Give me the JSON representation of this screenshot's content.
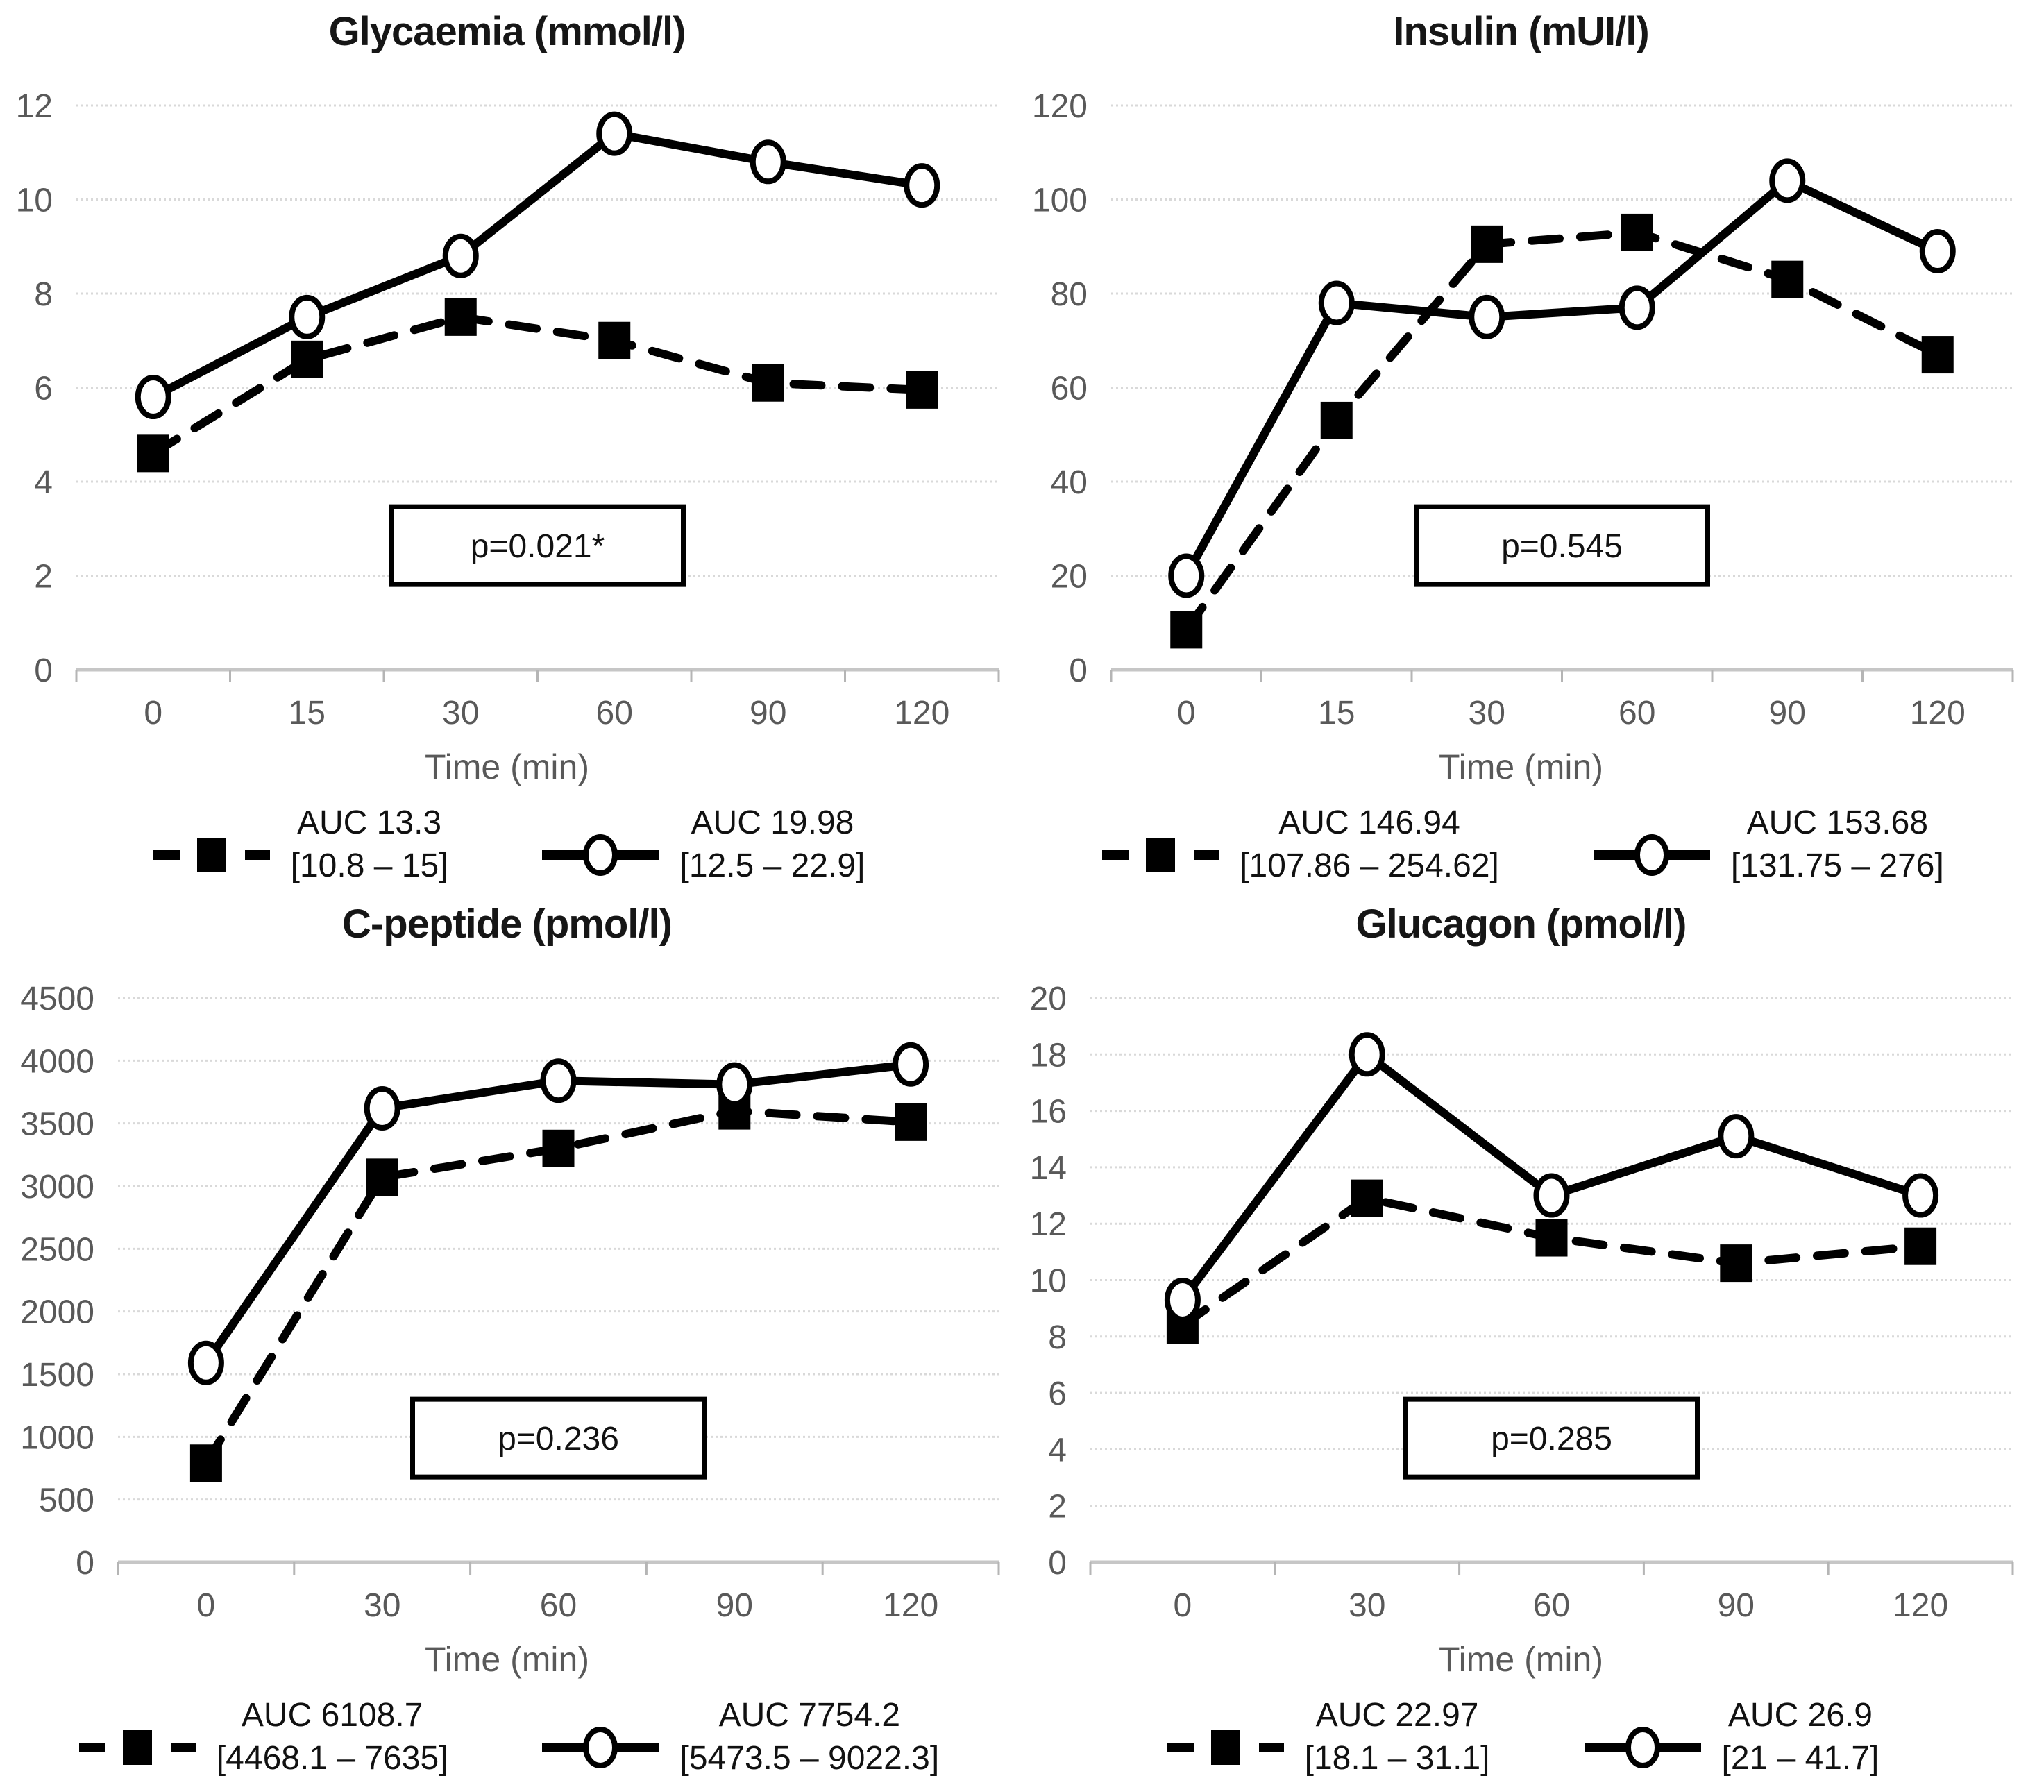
{
  "page": {
    "background": "#ffffff"
  },
  "colors": {
    "series": "#000000",
    "axis_label": "#595959",
    "gridline": "#d9d9d9",
    "axis_line": "#c6c6c6",
    "tick_mark": "#b5b5b5",
    "p_box_border": "#000000",
    "p_box_fill": "#ffffff",
    "title_text": "#161616",
    "legend_text": "#111111"
  },
  "chart_data": [
    {
      "type": "line",
      "title": "Glycaemia (mmol/l)",
      "xlabel": "Time (min)",
      "x_tick_labels": [
        "0",
        "15",
        "30",
        "60",
        "90",
        "120"
      ],
      "ylim": [
        0,
        12
      ],
      "yticks": [
        0,
        2,
        4,
        6,
        8,
        10,
        12
      ],
      "grid": "horizontal",
      "legend_position": "bottom",
      "p_value_label": "p=0.021*",
      "series": [
        {
          "name": "dashed-filled-squares",
          "marker": "filled-square",
          "line_style": "dashed",
          "color": "#000000",
          "x": [
            0,
            15,
            30,
            60,
            90,
            120
          ],
          "values": [
            4.6,
            6.6,
            7.5,
            7.0,
            6.1,
            5.95
          ],
          "legend": {
            "auc_label": "AUC 13.3",
            "range_label": "[10.8 – 15]"
          }
        },
        {
          "name": "solid-open-circles",
          "marker": "open-circle",
          "line_style": "solid",
          "color": "#000000",
          "x": [
            0,
            15,
            30,
            60,
            90,
            120
          ],
          "values": [
            5.8,
            7.5,
            8.8,
            11.4,
            10.8,
            10.3
          ],
          "legend": {
            "auc_label": "AUC 19.98",
            "range_label": "[12.5 – 22.9]"
          }
        }
      ]
    },
    {
      "type": "line",
      "title": "Insulin (mUI/l)",
      "xlabel": "Time (min)",
      "x_tick_labels": [
        "0",
        "15",
        "30",
        "60",
        "90",
        "120"
      ],
      "ylim": [
        0,
        120
      ],
      "yticks": [
        0,
        20,
        40,
        60,
        80,
        100,
        120
      ],
      "grid": "horizontal",
      "legend_position": "bottom",
      "p_value_label": "p=0.545",
      "series": [
        {
          "name": "dashed-filled-squares",
          "marker": "filled-square",
          "line_style": "dashed",
          "color": "#000000",
          "x": [
            0,
            15,
            30,
            60,
            90,
            120
          ],
          "values": [
            8.5,
            53,
            90.5,
            93,
            83,
            67
          ],
          "legend": {
            "auc_label": "AUC 146.94",
            "range_label": "[107.86 – 254.62]"
          }
        },
        {
          "name": "solid-open-circles",
          "marker": "open-circle",
          "line_style": "solid",
          "color": "#000000",
          "x": [
            0,
            15,
            30,
            60,
            90,
            120
          ],
          "values": [
            20,
            78,
            75,
            77,
            104,
            89
          ],
          "legend": {
            "auc_label": "AUC 153.68",
            "range_label": "[131.75 – 276]"
          }
        }
      ]
    },
    {
      "type": "line",
      "title": "C-peptide (pmol/l)",
      "xlabel": "Time (min)",
      "x_tick_labels": [
        "0",
        "30",
        "60",
        "90",
        "120"
      ],
      "ylim": [
        0,
        4500
      ],
      "yticks": [
        0,
        500,
        1000,
        1500,
        2000,
        2500,
        3000,
        3500,
        4000,
        4500
      ],
      "grid": "horizontal",
      "legend_position": "bottom",
      "p_value_label": "p=0.236",
      "series": [
        {
          "name": "dashed-filled-squares",
          "marker": "filled-square",
          "line_style": "dashed",
          "color": "#000000",
          "x": [
            0,
            30,
            60,
            90,
            120
          ],
          "values": [
            790,
            3070,
            3300,
            3600,
            3510
          ],
          "legend": {
            "auc_label": "AUC 6108.7",
            "range_label": "[4468.1 – 7635]"
          }
        },
        {
          "name": "solid-open-circles",
          "marker": "open-circle",
          "line_style": "solid",
          "color": "#000000",
          "x": [
            0,
            30,
            60,
            90,
            120
          ],
          "values": [
            1590,
            3620,
            3840,
            3810,
            3970
          ],
          "legend": {
            "auc_label": "AUC 7754.2",
            "range_label": "[5473.5 – 9022.3]"
          }
        }
      ]
    },
    {
      "type": "line",
      "title": "Glucagon (pmol/l)",
      "xlabel": "Time (min)",
      "x_tick_labels": [
        "0",
        "30",
        "60",
        "90",
        "120"
      ],
      "ylim": [
        0,
        20
      ],
      "yticks": [
        0,
        2,
        4,
        6,
        8,
        10,
        12,
        14,
        16,
        18,
        20
      ],
      "grid": "horizontal",
      "legend_position": "bottom",
      "p_value_label": "p=0.285",
      "series": [
        {
          "name": "dashed-filled-squares",
          "marker": "filled-square",
          "line_style": "dashed",
          "color": "#000000",
          "x": [
            0,
            30,
            60,
            90,
            120
          ],
          "values": [
            8.4,
            12.9,
            11.5,
            10.6,
            11.2
          ],
          "legend": {
            "auc_label": "AUC 22.97",
            "range_label": "[18.1 – 31.1]"
          }
        },
        {
          "name": "solid-open-circles",
          "marker": "open-circle",
          "line_style": "solid",
          "color": "#000000",
          "x": [
            0,
            30,
            60,
            90,
            120
          ],
          "values": [
            9.3,
            18,
            13,
            15.1,
            13
          ],
          "legend": {
            "auc_label": "AUC 26.9",
            "range_label": "[21 – 41.7]"
          }
        }
      ]
    }
  ]
}
